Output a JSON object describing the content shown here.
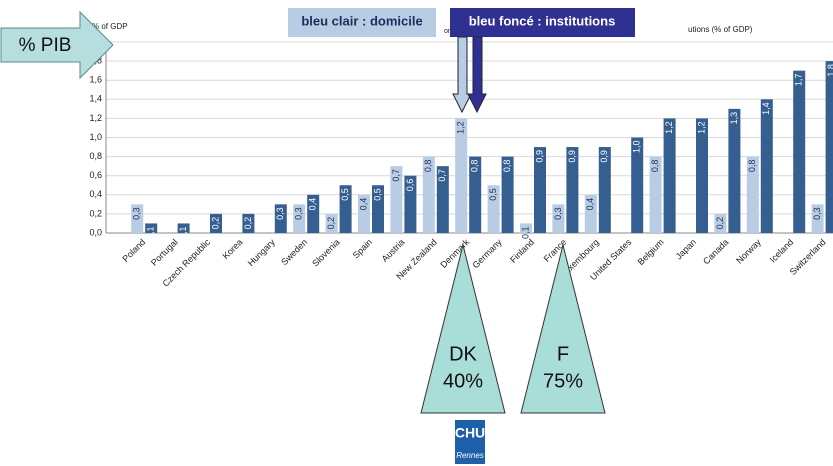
{
  "chart_data": {
    "type": "bar",
    "y_axis_label": "% of GDP",
    "title_fragments": [
      "on h",
      "utions (% of GDP)"
    ],
    "categories": [
      "Poland",
      "Portugal",
      "Czech Republic",
      "Korea",
      "Hungary",
      "Sweden",
      "Slovenia",
      "Spain",
      "Austria",
      "New Zealand",
      "Denmark",
      "Germany",
      "Finland",
      "France",
      "Luxembourg",
      "United States",
      "Belgium",
      "Japan",
      "Canada",
      "Norway",
      "Iceland",
      "Switzerland"
    ],
    "series": [
      {
        "name": "bleu clair : domicile",
        "color": "#b8cce4",
        "values": [
          0.3,
          null,
          null,
          null,
          null,
          0.3,
          0.2,
          0.4,
          0.7,
          0.8,
          1.2,
          0.5,
          0.1,
          0.3,
          0.4,
          null,
          0.8,
          null,
          0.2,
          0.8,
          null,
          0.3
        ],
        "value_labels": [
          "0,3",
          null,
          null,
          null,
          null,
          "0,3",
          "0,2",
          "0,4",
          "0,7",
          "0,8",
          "1,2",
          "0,5",
          "0,1",
          "0,3",
          "0,4",
          null,
          "0,8",
          null,
          "0,2",
          "0,8",
          null,
          "0,3"
        ]
      },
      {
        "name": "bleu foncé : institutions",
        "color": "#365f91",
        "values": [
          0.1,
          0.1,
          0.2,
          0.2,
          0.3,
          0.4,
          0.5,
          0.5,
          0.6,
          0.7,
          0.8,
          0.8,
          0.9,
          0.9,
          0.9,
          1.0,
          1.2,
          1.2,
          1.3,
          1.4,
          1.7,
          1.8
        ],
        "value_labels": [
          "0,1",
          "0,1",
          "0,2",
          "0,2",
          "0,3",
          "0,4",
          "0,5",
          "0,5",
          "0,6",
          "0,7",
          "0,8",
          "0,8",
          "0,9",
          "0,9",
          "0,9",
          "1,0",
          "1,2",
          "1,2",
          "1,3",
          "1,4",
          "1,7",
          "1,8"
        ]
      }
    ],
    "ylim": [
      0,
      2
    ],
    "yticks": [
      {
        "value": 0,
        "label": "0,0"
      },
      {
        "value": 0.2,
        "label": "0,2"
      },
      {
        "value": 0.4,
        "label": "0,4"
      },
      {
        "value": 0.6,
        "label": "0,6"
      },
      {
        "value": 0.8,
        "label": "0,8"
      },
      {
        "value": 1.0,
        "label": "1,0"
      },
      {
        "value": 1.2,
        "label": "1,2"
      },
      {
        "value": 1.4,
        "label": "1,4"
      },
      {
        "value": 1.6,
        "label": "1,6"
      },
      {
        "value": 1.8,
        "label": "1,8"
      },
      {
        "value": 2.0,
        "label": "2,0"
      }
    ],
    "grid": true,
    "annotations": {
      "pib": "% PIB",
      "dk_name": "DK",
      "dk_share": "40%",
      "f_name": "F",
      "f_share": "75%",
      "logo_top": "CHU",
      "logo_bottom": "Rennes"
    }
  }
}
